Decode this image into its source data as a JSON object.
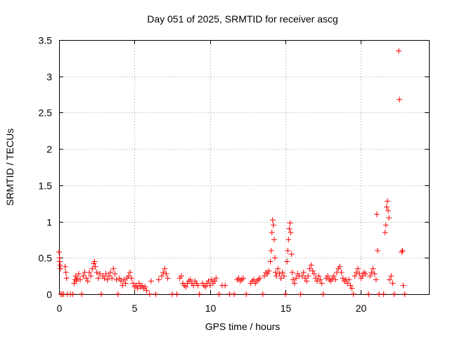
{
  "chart_data": {
    "type": "scatter",
    "title": "Day 051 of 2025, SRMTID for receiver ascg",
    "xlabel": "GPS time / hours",
    "ylabel": "SRMTID / TECUs",
    "xlim": [
      0,
      24.5
    ],
    "ylim": [
      0,
      3.5
    ],
    "xticks": [
      0,
      5,
      10,
      15,
      20
    ],
    "xtick_labels": [
      "0",
      "5",
      "10",
      "15",
      "20"
    ],
    "yticks": [
      0,
      0.5,
      1,
      1.5,
      2,
      2.5,
      3,
      3.5
    ],
    "ytick_labels": [
      "0",
      "0.5",
      "1",
      "1.5",
      "2",
      "2.5",
      "3",
      "3.5"
    ],
    "grid": true,
    "marker": "+",
    "color": "#ff0000",
    "series": [
      {
        "name": "SRMTID",
        "points": [
          [
            0.0,
            0.58
          ],
          [
            0.03,
            0.5
          ],
          [
            0.05,
            0.45
          ],
          [
            0.07,
            0.4
          ],
          [
            0.1,
            0.35
          ],
          [
            0.12,
            0.0
          ],
          [
            0.2,
            0.0
          ],
          [
            0.3,
            0.0
          ],
          [
            0.4,
            0.38
          ],
          [
            0.45,
            0.3
          ],
          [
            0.5,
            0.22
          ],
          [
            0.55,
            0.0
          ],
          [
            0.75,
            0.0
          ],
          [
            0.9,
            0.0
          ],
          [
            1.0,
            0.15
          ],
          [
            1.05,
            0.2
          ],
          [
            1.1,
            0.25
          ],
          [
            1.15,
            0.18
          ],
          [
            1.2,
            0.22
          ],
          [
            1.3,
            0.28
          ],
          [
            1.4,
            0.2
          ],
          [
            1.5,
            0.0
          ],
          [
            1.6,
            0.25
          ],
          [
            1.7,
            0.3
          ],
          [
            1.8,
            0.22
          ],
          [
            1.9,
            0.18
          ],
          [
            2.0,
            0.3
          ],
          [
            2.1,
            0.25
          ],
          [
            2.2,
            0.35
          ],
          [
            2.3,
            0.42
          ],
          [
            2.35,
            0.45
          ],
          [
            2.4,
            0.38
          ],
          [
            2.5,
            0.3
          ],
          [
            2.6,
            0.22
          ],
          [
            2.7,
            0.28
          ],
          [
            2.8,
            0.0
          ],
          [
            2.9,
            0.25
          ],
          [
            3.0,
            0.22
          ],
          [
            3.1,
            0.28
          ],
          [
            3.2,
            0.2
          ],
          [
            3.3,
            0.25
          ],
          [
            3.4,
            0.3
          ],
          [
            3.5,
            0.22
          ],
          [
            3.6,
            0.35
          ],
          [
            3.7,
            0.28
          ],
          [
            3.8,
            0.2
          ],
          [
            3.9,
            0.0
          ],
          [
            4.0,
            0.22
          ],
          [
            4.1,
            0.18
          ],
          [
            4.2,
            0.12
          ],
          [
            4.3,
            0.2
          ],
          [
            4.4,
            0.15
          ],
          [
            4.5,
            0.22
          ],
          [
            4.6,
            0.25
          ],
          [
            4.7,
            0.3
          ],
          [
            4.8,
            0.22
          ],
          [
            4.9,
            0.15
          ],
          [
            5.0,
            0.1
          ],
          [
            5.1,
            0.12
          ],
          [
            5.2,
            0.08
          ],
          [
            5.3,
            0.15
          ],
          [
            5.4,
            0.1
          ],
          [
            5.5,
            0.12
          ],
          [
            5.6,
            0.08
          ],
          [
            5.7,
            0.1
          ],
          [
            5.8,
            0.05
          ],
          [
            6.0,
            0.0
          ],
          [
            6.1,
            0.18
          ],
          [
            6.4,
            0.0
          ],
          [
            6.6,
            0.2
          ],
          [
            6.8,
            0.25
          ],
          [
            6.9,
            0.3
          ],
          [
            7.0,
            0.35
          ],
          [
            7.1,
            0.28
          ],
          [
            7.2,
            0.22
          ],
          [
            7.5,
            0.0
          ],
          [
            7.8,
            0.0
          ],
          [
            8.0,
            0.22
          ],
          [
            8.1,
            0.25
          ],
          [
            8.2,
            0.15
          ],
          [
            8.3,
            0.12
          ],
          [
            8.4,
            0.1
          ],
          [
            8.5,
            0.15
          ],
          [
            8.6,
            0.18
          ],
          [
            8.7,
            0.2
          ],
          [
            8.8,
            0.15
          ],
          [
            8.9,
            0.12
          ],
          [
            9.0,
            0.18
          ],
          [
            9.1,
            0.15
          ],
          [
            9.2,
            0.12
          ],
          [
            9.3,
            0.0
          ],
          [
            9.5,
            0.15
          ],
          [
            9.6,
            0.12
          ],
          [
            9.7,
            0.1
          ],
          [
            9.8,
            0.15
          ],
          [
            9.9,
            0.18
          ],
          [
            10.0,
            0.12
          ],
          [
            10.1,
            0.2
          ],
          [
            10.2,
            0.15
          ],
          [
            10.3,
            0.18
          ],
          [
            10.4,
            0.22
          ],
          [
            10.6,
            0.0
          ],
          [
            10.8,
            0.12
          ],
          [
            11.0,
            0.12
          ],
          [
            11.3,
            0.0
          ],
          [
            11.6,
            0.0
          ],
          [
            11.8,
            0.2
          ],
          [
            11.9,
            0.22
          ],
          [
            12.0,
            0.18
          ],
          [
            12.1,
            0.2
          ],
          [
            12.2,
            0.22
          ],
          [
            12.4,
            0.0
          ],
          [
            12.7,
            0.15
          ],
          [
            12.8,
            0.18
          ],
          [
            12.9,
            0.2
          ],
          [
            13.0,
            0.15
          ],
          [
            13.1,
            0.18
          ],
          [
            13.2,
            0.2
          ],
          [
            13.3,
            0.22
          ],
          [
            13.5,
            0.0
          ],
          [
            13.6,
            0.25
          ],
          [
            13.7,
            0.3
          ],
          [
            13.8,
            0.28
          ],
          [
            13.9,
            0.32
          ],
          [
            14.0,
            0.45
          ],
          [
            14.05,
            0.6
          ],
          [
            14.1,
            0.85
          ],
          [
            14.15,
            1.02
          ],
          [
            14.2,
            0.95
          ],
          [
            14.25,
            0.75
          ],
          [
            14.3,
            0.5
          ],
          [
            14.35,
            0.3
          ],
          [
            14.4,
            0.25
          ],
          [
            14.5,
            0.35
          ],
          [
            14.6,
            0.28
          ],
          [
            14.7,
            0.22
          ],
          [
            14.8,
            0.3
          ],
          [
            14.9,
            0.25
          ],
          [
            15.0,
            0.0
          ],
          [
            15.1,
            0.45
          ],
          [
            15.15,
            0.6
          ],
          [
            15.2,
            0.75
          ],
          [
            15.25,
            0.9
          ],
          [
            15.3,
            0.98
          ],
          [
            15.35,
            0.85
          ],
          [
            15.4,
            0.55
          ],
          [
            15.45,
            0.3
          ],
          [
            15.5,
            0.2
          ],
          [
            15.6,
            0.15
          ],
          [
            15.7,
            0.22
          ],
          [
            15.8,
            0.28
          ],
          [
            15.9,
            0.25
          ],
          [
            16.0,
            0.0
          ],
          [
            16.1,
            0.25
          ],
          [
            16.2,
            0.3
          ],
          [
            16.3,
            0.22
          ],
          [
            16.4,
            0.18
          ],
          [
            16.5,
            0.25
          ],
          [
            16.6,
            0.35
          ],
          [
            16.7,
            0.4
          ],
          [
            16.8,
            0.32
          ],
          [
            16.9,
            0.28
          ],
          [
            17.0,
            0.22
          ],
          [
            17.1,
            0.18
          ],
          [
            17.2,
            0.25
          ],
          [
            17.3,
            0.2
          ],
          [
            17.4,
            0.15
          ],
          [
            17.5,
            0.0
          ],
          [
            17.7,
            0.22
          ],
          [
            17.8,
            0.25
          ],
          [
            17.9,
            0.2
          ],
          [
            18.0,
            0.18
          ],
          [
            18.1,
            0.22
          ],
          [
            18.2,
            0.25
          ],
          [
            18.3,
            0.2
          ],
          [
            18.4,
            0.3
          ],
          [
            18.5,
            0.35
          ],
          [
            18.6,
            0.38
          ],
          [
            18.7,
            0.3
          ],
          [
            18.8,
            0.22
          ],
          [
            18.9,
            0.18
          ],
          [
            19.0,
            0.2
          ],
          [
            19.1,
            0.15
          ],
          [
            19.2,
            0.2
          ],
          [
            19.3,
            0.12
          ],
          [
            19.4,
            0.08
          ],
          [
            19.5,
            0.0
          ],
          [
            19.6,
            0.25
          ],
          [
            19.7,
            0.3
          ],
          [
            19.8,
            0.35
          ],
          [
            19.9,
            0.28
          ],
          [
            20.0,
            0.22
          ],
          [
            20.1,
            0.25
          ],
          [
            20.2,
            0.3
          ],
          [
            20.3,
            0.28
          ],
          [
            20.5,
            0.0
          ],
          [
            20.6,
            0.25
          ],
          [
            20.7,
            0.3
          ],
          [
            20.8,
            0.35
          ],
          [
            20.9,
            0.28
          ],
          [
            21.0,
            0.2
          ],
          [
            21.05,
            1.1
          ],
          [
            21.1,
            0.6
          ],
          [
            21.2,
            0.0
          ],
          [
            21.5,
            0.0
          ],
          [
            21.6,
            0.85
          ],
          [
            21.65,
            0.95
          ],
          [
            21.7,
            1.2
          ],
          [
            21.75,
            1.28
          ],
          [
            21.8,
            1.15
          ],
          [
            21.85,
            1.05
          ],
          [
            21.9,
            0.2
          ],
          [
            22.0,
            0.25
          ],
          [
            22.1,
            0.15
          ],
          [
            22.2,
            0.0
          ],
          [
            22.5,
            3.35
          ],
          [
            22.55,
            2.68
          ],
          [
            22.7,
            0.58
          ],
          [
            22.75,
            0.6
          ],
          [
            22.8,
            0.12
          ],
          [
            22.9,
            0.0
          ]
        ]
      }
    ]
  }
}
